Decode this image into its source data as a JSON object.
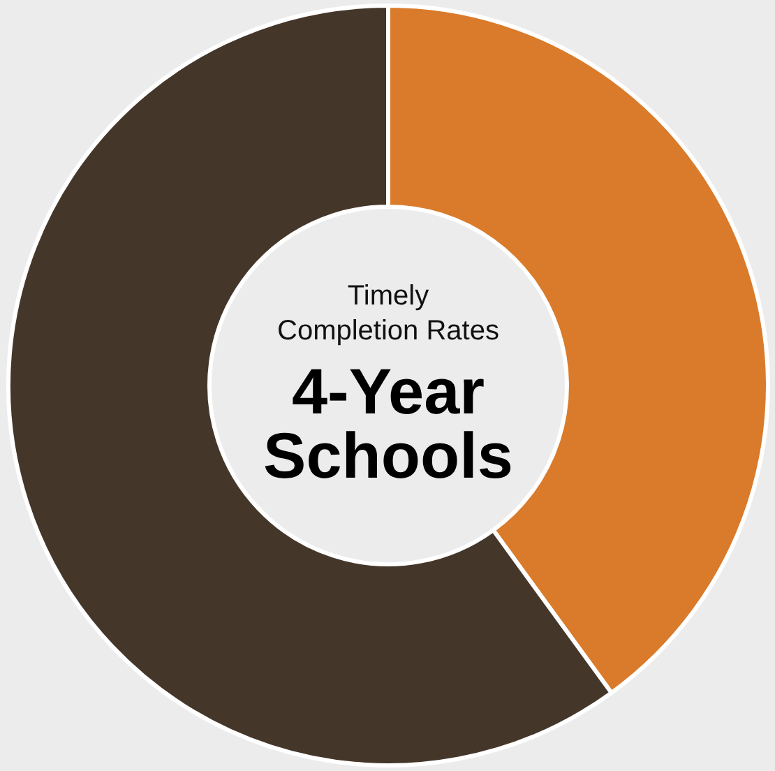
{
  "chart_data": {
    "type": "donut",
    "title": "4-Year Schools",
    "subtitle": "Timely Completion Rates",
    "categories": [
      null,
      null
    ],
    "values": [
      40,
      60
    ],
    "colors": [
      "#d97b2a",
      "#45362a"
    ]
  }
}
